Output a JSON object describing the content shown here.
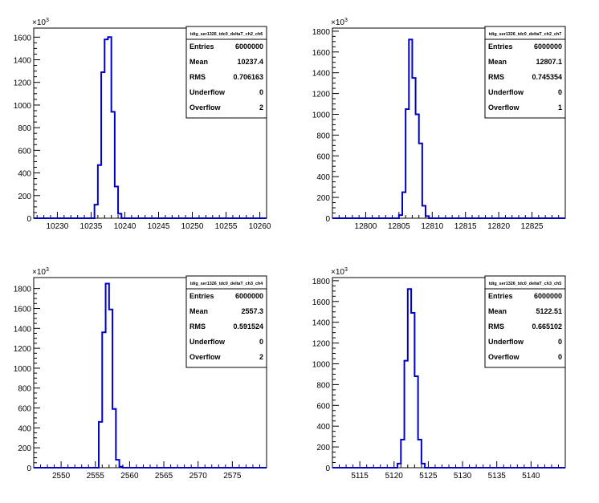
{
  "chart_data": [
    {
      "type": "bar",
      "style": "step-histogram",
      "title": "tdig_ser1326_tdc0_deltaT_ch2_ch6",
      "exponent_label": "×10",
      "exponent_sup": "3",
      "xlim": [
        10226.5,
        10261
      ],
      "ylim": [
        0,
        1680
      ],
      "x_ticks": [
        10230,
        10235,
        10240,
        10245,
        10250,
        10255,
        10260
      ],
      "y_ticks": [
        0,
        200,
        400,
        600,
        800,
        1000,
        1200,
        1400,
        1600
      ],
      "y_tick_labels": [
        "0",
        "200",
        "400",
        "600",
        "800",
        "1000",
        "1200",
        "1400",
        "1600"
      ],
      "bin_edges": [
        10235,
        10235.5,
        10236,
        10236.5,
        10237,
        10237.5,
        10238,
        10238.5,
        10239,
        10239.5,
        10240
      ],
      "values": [
        0,
        120,
        470,
        1290,
        1580,
        1600,
        940,
        280,
        40,
        0
      ],
      "color": "#0000cc",
      "stats": {
        "Entries": "6000000",
        "Mean": "10237.4",
        "RMS": "0.706163",
        "Underflow": "0",
        "Overflow": "2"
      }
    },
    {
      "type": "bar",
      "style": "step-histogram",
      "title": "tdig_ser1326_tdc0_deltaT_ch2_ch7",
      "exponent_label": "×10",
      "exponent_sup": "3",
      "xlim": [
        12795,
        12830
      ],
      "ylim": [
        0,
        1830
      ],
      "x_ticks": [
        12800,
        12805,
        12810,
        12815,
        12820,
        12825
      ],
      "y_ticks": [
        0,
        200,
        400,
        600,
        800,
        1000,
        1200,
        1400,
        1600,
        1800
      ],
      "y_tick_labels": [
        "0",
        "200",
        "400",
        "600",
        "800",
        "1000",
        "1200",
        "1400",
        "1600",
        "1800"
      ],
      "bin_edges": [
        12804.5,
        12805,
        12805.5,
        12806,
        12806.5,
        12807,
        12807.5,
        12808,
        12808.5,
        12809,
        12809.5,
        12810
      ],
      "values": [
        0,
        30,
        250,
        1050,
        1720,
        1350,
        1000,
        720,
        120,
        20,
        0
      ],
      "color": "#0000cc",
      "stats": {
        "Entries": "6000000",
        "Mean": "12807.1",
        "RMS": "0.745354",
        "Underflow": "0",
        "Overflow": "1"
      }
    },
    {
      "type": "bar",
      "style": "step-histogram",
      "title": "tdig_ser1326_tdc0_deltaT_ch3_ch4",
      "exponent_label": "×10",
      "exponent_sup": "3",
      "xlim": [
        2546,
        2580
      ],
      "ylim": [
        0,
        1910
      ],
      "x_ticks": [
        2550,
        2555,
        2560,
        2565,
        2570,
        2575
      ],
      "y_ticks": [
        0,
        200,
        400,
        600,
        800,
        1000,
        1200,
        1400,
        1600,
        1800
      ],
      "y_tick_labels": [
        "0",
        "200",
        "400",
        "600",
        "800",
        "1000",
        "1200",
        "1400",
        "1600",
        "1800"
      ],
      "bin_edges": [
        2555,
        2555.5,
        2556,
        2556.5,
        2557,
        2557.5,
        2558,
        2558.5,
        2559,
        2559.5
      ],
      "values": [
        0,
        460,
        1360,
        1850,
        1590,
        590,
        80,
        10,
        0
      ],
      "color": "#0000cc",
      "stats": {
        "Entries": "6000000",
        "Mean": "2557.3",
        "RMS": "0.591524",
        "Underflow": "0",
        "Overflow": "2"
      }
    },
    {
      "type": "bar",
      "style": "step-histogram",
      "title": "tdig_ser1326_tdc0_deltaT_ch3_ch5",
      "exponent_label": "×10",
      "exponent_sup": "3",
      "xlim": [
        5111,
        5145
      ],
      "ylim": [
        0,
        1830
      ],
      "x_ticks": [
        5115,
        5120,
        5125,
        5130,
        5135,
        5140
      ],
      "y_ticks": [
        0,
        200,
        400,
        600,
        800,
        1000,
        1200,
        1400,
        1600,
        1800
      ],
      "y_tick_labels": [
        "0",
        "200",
        "400",
        "600",
        "800",
        "1000",
        "1200",
        "1400",
        "1600",
        "1800"
      ],
      "bin_edges": [
        5120,
        5120.5,
        5121,
        5121.5,
        5122,
        5122.5,
        5123,
        5123.5,
        5124,
        5124.5,
        5125
      ],
      "values": [
        0,
        40,
        270,
        1030,
        1720,
        1490,
        880,
        270,
        40,
        0
      ],
      "color": "#0000cc",
      "stats": {
        "Entries": "6000000",
        "Mean": "5122.51",
        "RMS": "0.665102",
        "Underflow": "0",
        "Overflow": "0"
      }
    }
  ]
}
